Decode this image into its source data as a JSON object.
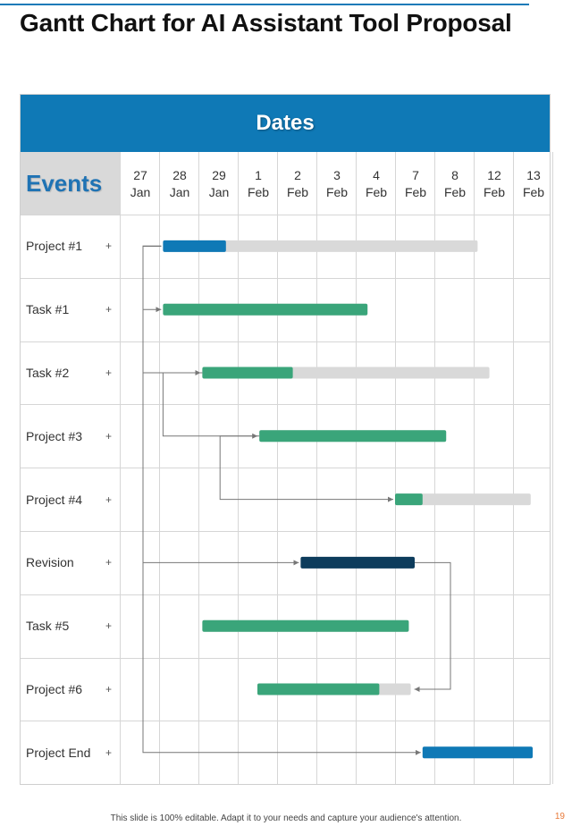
{
  "title": "Gantt Chart for AI Assistant Tool Proposal",
  "footer": "This slide is 100% editable. Adapt it to your needs and capture your audience's attention.",
  "page_number": "19",
  "colors": {
    "primary_blue": "#0f79b6",
    "green": "#3aa57a",
    "navy": "#0d3c5c",
    "gray_track": "#d9d9d9"
  },
  "chart_data": {
    "type": "gantt",
    "header": "Dates",
    "events_label": "Events",
    "row_marker": "+",
    "dates": [
      {
        "day": "27",
        "month": "Jan"
      },
      {
        "day": "28",
        "month": "Jan"
      },
      {
        "day": "29",
        "month": "Jan"
      },
      {
        "day": "1",
        "month": "Feb"
      },
      {
        "day": "2",
        "month": "Feb"
      },
      {
        "day": "3",
        "month": "Feb"
      },
      {
        "day": "4",
        "month": "Feb"
      },
      {
        "day": "7",
        "month": "Feb"
      },
      {
        "day": "8",
        "month": "Feb"
      },
      {
        "day": "12",
        "month": "Feb"
      },
      {
        "day": "13",
        "month": "Feb"
      }
    ],
    "rows": [
      {
        "label": "Project #1",
        "start": 1.1,
        "progress_end": 2.7,
        "end": 9.1,
        "color": "blue"
      },
      {
        "label": "Task  #1",
        "start": 1.1,
        "progress_end": 6.3,
        "end": 6.3,
        "color": "green"
      },
      {
        "label": "Task  #2",
        "start": 2.1,
        "progress_end": 4.4,
        "end": 9.4,
        "color": "green"
      },
      {
        "label": "Project #3",
        "start": 3.55,
        "progress_end": 8.3,
        "end": 8.3,
        "color": "green"
      },
      {
        "label": "Project #4",
        "start": 7.0,
        "progress_end": 7.7,
        "end": 10.45,
        "color": "green"
      },
      {
        "label": "Revision",
        "start": 4.6,
        "progress_end": 7.5,
        "end": 7.5,
        "color": "navy"
      },
      {
        "label": "Task  #5",
        "start": 2.1,
        "progress_end": 7.35,
        "end": 7.35,
        "color": "green"
      },
      {
        "label": "Project #6",
        "start": 3.5,
        "progress_end": 6.6,
        "end": 7.4,
        "color": "green"
      },
      {
        "label": "Project End",
        "start": 7.7,
        "progress_end": 10.5,
        "end": 10.5,
        "color": "blue"
      }
    ],
    "dependencies": [
      {
        "from": "Project #1",
        "to": "Task  #1"
      },
      {
        "from": "Project #1",
        "to": "Task  #2"
      },
      {
        "from": "Project #1",
        "to": "Revision"
      },
      {
        "from": "Project #1",
        "to": "Project End"
      },
      {
        "from": "Task  #2",
        "to": "Project #3"
      },
      {
        "from": "Project #3",
        "to": "Project #4"
      },
      {
        "from": "Revision",
        "to": "Project #6"
      }
    ]
  }
}
